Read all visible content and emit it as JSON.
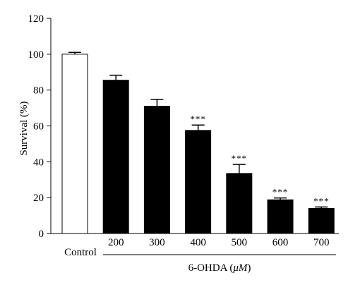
{
  "chart_data": {
    "type": "bar",
    "categories": [
      "Control",
      "200",
      "300",
      "400",
      "500",
      "600",
      "700"
    ],
    "values": [
      100,
      85.5,
      71,
      57.5,
      33.5,
      18.8,
      14
    ],
    "errors": [
      1,
      2.8,
      3.8,
      3,
      5,
      1,
      0.8
    ],
    "significance": [
      "",
      "",
      "",
      "***",
      "***",
      "***",
      "***"
    ],
    "bar_colors": [
      "#ffffff",
      "#000000",
      "#000000",
      "#000000",
      "#000000",
      "#000000",
      "#000000"
    ],
    "ylabel": "Survival (%)",
    "group_label_prefix": "6-OHDA (",
    "group_label_unit": "μM",
    "group_label_suffix": ")",
    "yticks": [
      "0",
      "20",
      "40",
      "60",
      "80",
      "100",
      "120"
    ],
    "ylim": [
      0,
      120
    ],
    "grid": false,
    "legend": "none"
  }
}
